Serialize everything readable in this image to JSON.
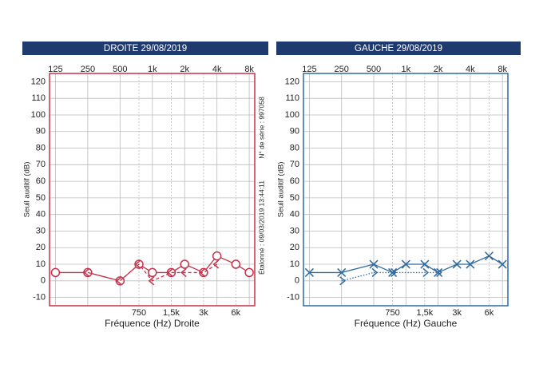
{
  "chart_data": [
    {
      "type": "line",
      "title": "DROITE 29/08/2019",
      "xlabel": "Fréquence (Hz) Droite",
      "ylabel": "Seuil auditif (dB)",
      "annotations": [
        "N° de série : 997058",
        "Étalonné : 09/03/2019 13:44:11"
      ],
      "xscale": "log",
      "xlim": [
        110,
        9000
      ],
      "ylim": [
        125,
        -15
      ],
      "color": "#c8304a",
      "xticks": [
        125,
        250,
        500,
        {
          "value": 1000,
          "label": "1k"
        },
        {
          "value": 2000,
          "label": "2k"
        },
        {
          "value": 4000,
          "label": "4k"
        },
        {
          "value": 8000,
          "label": "8k"
        }
      ],
      "xticks_minor": [
        750,
        {
          "value": 1500,
          "label": "1,5k"
        },
        {
          "value": 3000,
          "label": "3k"
        },
        {
          "value": 6000,
          "label": "6k"
        }
      ],
      "yticks": [
        -10,
        0,
        10,
        20,
        30,
        40,
        50,
        60,
        70,
        80,
        90,
        100,
        110,
        120
      ],
      "series": [
        {
          "marker": "o",
          "dash": "none",
          "x": [
            125,
            250,
            500,
            750,
            1000,
            1500,
            2000,
            3000,
            4000,
            6000,
            8000
          ],
          "values": [
            5,
            5,
            0,
            10,
            5,
            5,
            10,
            5,
            15,
            10,
            5
          ]
        },
        {
          "marker": "<",
          "dash": "4 3",
          "x": [
            250,
            500,
            750,
            1000,
            1500,
            2000,
            3000,
            4000
          ],
          "values": [
            5,
            0,
            10,
            0,
            5,
            5,
            5,
            10
          ]
        }
      ]
    },
    {
      "type": "line",
      "title": "GAUCHE 29/08/2019",
      "xlabel": "Fréquence (Hz) Gauche",
      "ylabel": "Seuil auditif (dB)",
      "xscale": "log",
      "xlim": [
        110,
        9000
      ],
      "ylim": [
        125,
        -15
      ],
      "color": "#2e6aa0",
      "xticks": [
        125,
        250,
        500,
        {
          "value": 1000,
          "label": "1k"
        },
        {
          "value": 2000,
          "label": "2k"
        },
        {
          "value": 4000,
          "label": "4k"
        },
        {
          "value": 8000,
          "label": "8k"
        }
      ],
      "xticks_minor": [
        750,
        {
          "value": 1500,
          "label": "1,5k"
        },
        {
          "value": 3000,
          "label": "3k"
        },
        {
          "value": 6000,
          "label": "6k"
        }
      ],
      "yticks": [
        -10,
        0,
        10,
        20,
        30,
        40,
        50,
        60,
        70,
        80,
        90,
        100,
        110,
        120
      ],
      "series": [
        {
          "marker": "x",
          "dash": "none",
          "x": [
            125,
            250,
            500,
            750,
            1000,
            1500,
            2000,
            3000,
            4000,
            6000,
            8000
          ],
          "values": [
            5,
            5,
            10,
            5,
            10,
            10,
            5,
            10,
            10,
            15,
            10
          ]
        },
        {
          "marker": ">",
          "dash": "1.5 2",
          "x": [
            250,
            500,
            750,
            1500,
            2000
          ],
          "values": [
            0,
            5,
            5,
            5,
            5
          ]
        }
      ]
    }
  ]
}
